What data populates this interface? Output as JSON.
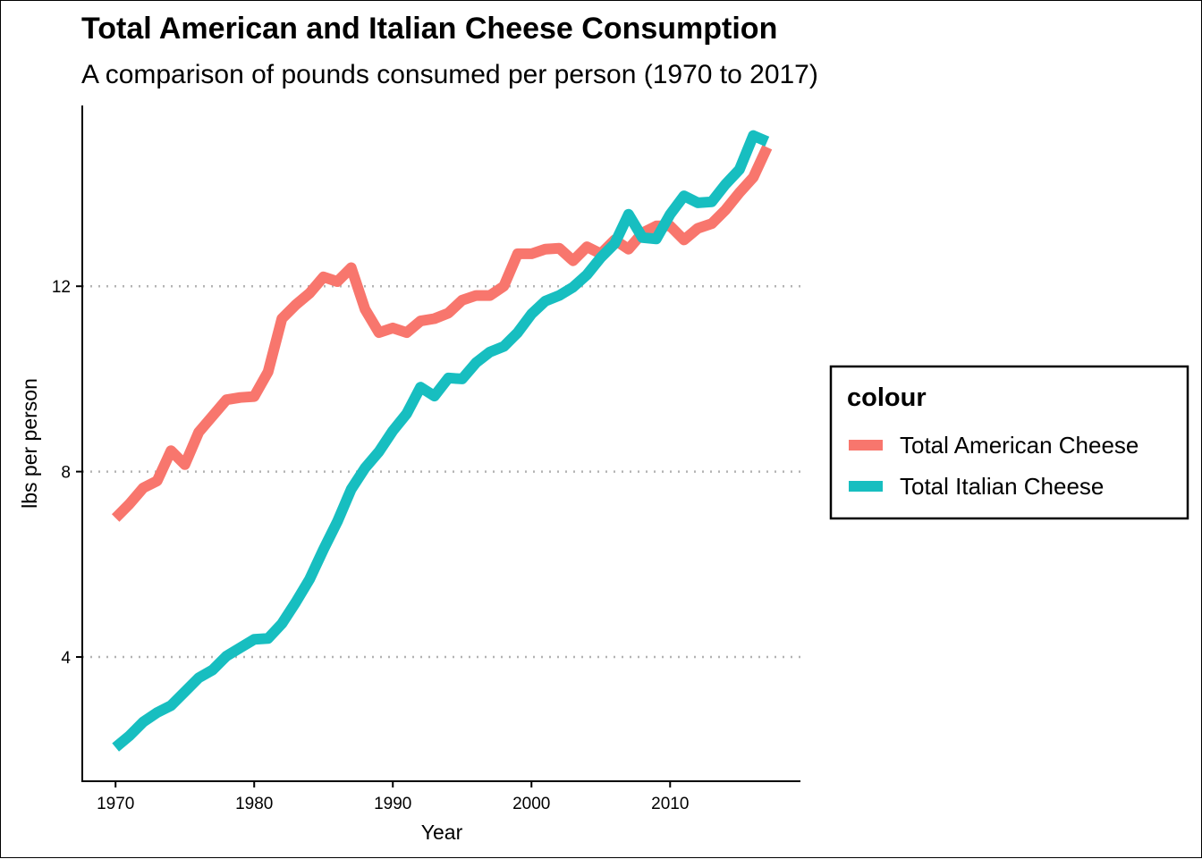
{
  "chart_data": {
    "type": "line",
    "title": "Total American and Italian Cheese Consumption",
    "subtitle": "A comparison of pounds consumed per person (1970 to 2017)",
    "xlabel": "Year",
    "ylabel": "lbs per person",
    "xlim": [
      1967.6,
      2019.4
    ],
    "ylim": [
      1.3,
      15.9
    ],
    "x_ticks": [
      1970,
      1980,
      1990,
      2000,
      2010
    ],
    "y_ticks": [
      4,
      8,
      12
    ],
    "grid": "horizontal dotted major lines",
    "legend": {
      "title": "colour",
      "placement": "right"
    },
    "x": [
      1970,
      1971,
      1972,
      1973,
      1974,
      1975,
      1976,
      1977,
      1978,
      1979,
      1980,
      1981,
      1982,
      1983,
      1984,
      1985,
      1986,
      1987,
      1988,
      1989,
      1990,
      1991,
      1992,
      1993,
      1994,
      1995,
      1996,
      1997,
      1998,
      1999,
      2000,
      2001,
      2002,
      2003,
      2004,
      2005,
      2006,
      2007,
      2008,
      2009,
      2010,
      2011,
      2012,
      2013,
      2014,
      2015,
      2016,
      2017
    ],
    "series": [
      {
        "name": "Total American Cheese",
        "color": "#F8766D",
        "values": [
          7.0,
          7.3,
          7.65,
          7.8,
          8.45,
          8.15,
          8.85,
          9.2,
          9.55,
          9.6,
          9.62,
          10.15,
          11.3,
          11.6,
          11.85,
          12.2,
          12.1,
          12.4,
          11.5,
          11.0,
          11.1,
          11.0,
          11.25,
          11.3,
          11.42,
          11.7,
          11.8,
          11.8,
          12.0,
          12.7,
          12.7,
          12.8,
          12.82,
          12.55,
          12.85,
          12.7,
          13.0,
          12.8,
          13.15,
          13.3,
          13.3,
          13.0,
          13.25,
          13.35,
          13.65,
          14.02,
          14.35,
          15.0
        ]
      },
      {
        "name": "Total Italian Cheese",
        "color": "#17BEC0",
        "values": [
          2.05,
          2.3,
          2.6,
          2.8,
          2.95,
          3.25,
          3.55,
          3.72,
          4.02,
          4.2,
          4.38,
          4.4,
          4.72,
          5.18,
          5.68,
          6.32,
          6.92,
          7.62,
          8.08,
          8.43,
          8.88,
          9.25,
          9.82,
          9.63,
          10.02,
          10.0,
          10.35,
          10.58,
          10.7,
          11.0,
          11.4,
          11.68,
          11.8,
          11.98,
          12.25,
          12.62,
          12.92,
          13.55,
          13.05,
          13.02,
          13.55,
          13.95,
          13.8,
          13.82,
          14.2,
          14.52,
          15.25,
          15.12
        ]
      }
    ]
  }
}
